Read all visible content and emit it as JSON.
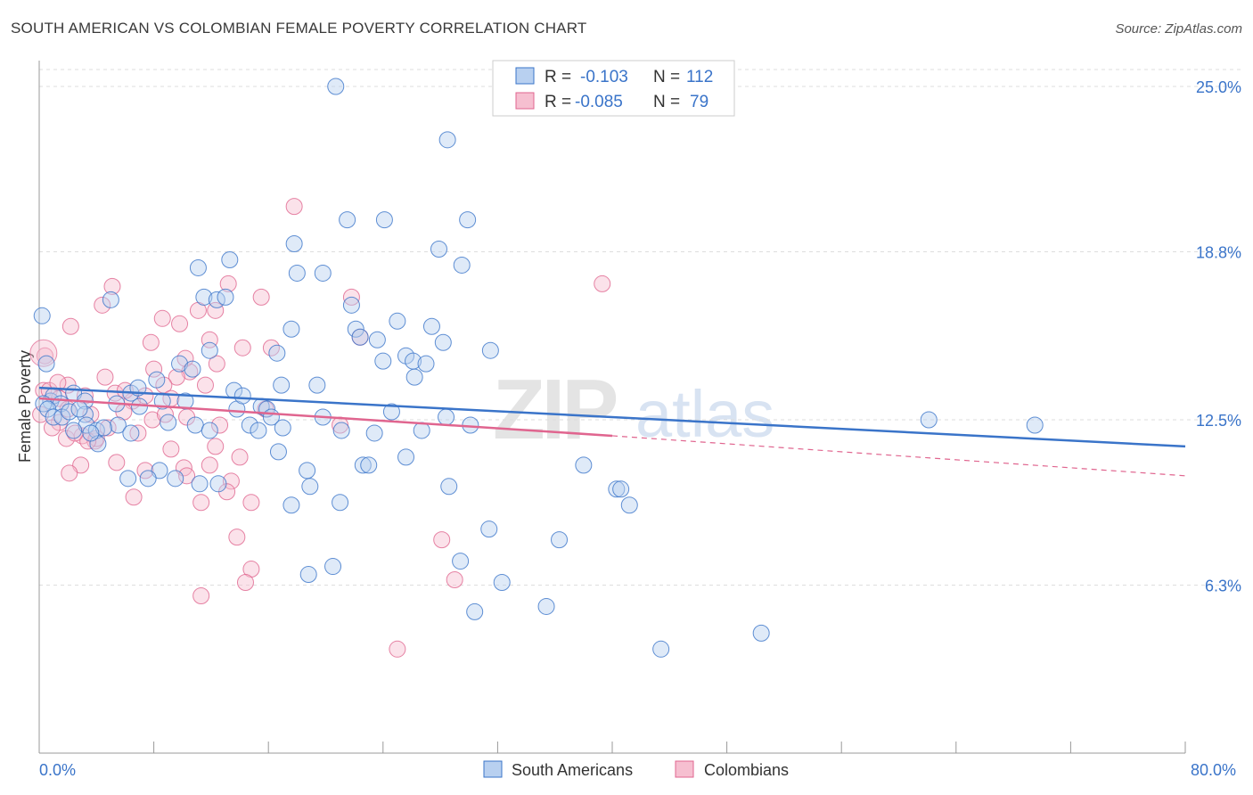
{
  "title": "SOUTH AMERICAN VS COLOMBIAN FEMALE POVERTY CORRELATION CHART",
  "source": "Source: ZipAtlas.com",
  "watermark": {
    "part1": "ZIP",
    "part2": "atlas"
  },
  "colors": {
    "blue": "#3a74c9",
    "blue_fill": "#b8d0f0",
    "pink": "#e0658f",
    "pink_fill": "#f6bfd0",
    "grid": "#dddddd",
    "axis": "#999999"
  },
  "legend": {
    "rows": [
      {
        "r_label": "R =",
        "r_value": "-0.103",
        "n_label": "N =",
        "n_value": "112",
        "color": "blue"
      },
      {
        "r_label": "R =",
        "r_value": "-0.085",
        "n_label": "N =",
        "n_value": "79",
        "color": "pink"
      }
    ]
  },
  "bottom_legend": [
    "South Americans",
    "Colombians"
  ],
  "chart_data": {
    "type": "scatter",
    "title": "SOUTH AMERICAN VS COLOMBIAN FEMALE POVERTY CORRELATION CHART",
    "xlabel": "",
    "ylabel": "Female Poverty",
    "xlim": [
      0,
      80
    ],
    "ylim": [
      0,
      26
    ],
    "x_tick_labels": [
      "0.0%",
      "80.0%"
    ],
    "y_ticks": [
      6.3,
      12.5,
      18.8,
      25.0
    ],
    "y_tick_labels": [
      "6.3%",
      "12.5%",
      "18.8%",
      "25.0%"
    ],
    "grid": "horizontal dashed",
    "series": [
      {
        "name": "South Americans",
        "color": "#3a74c9",
        "r": -0.103,
        "n": 112,
        "trend": {
          "x": [
            0,
            80
          ],
          "y": [
            13.7,
            11.5
          ]
        },
        "points": [
          [
            20.7,
            25.0
          ],
          [
            28.5,
            23.0
          ],
          [
            21.5,
            20.0
          ],
          [
            24.1,
            20.0
          ],
          [
            29.9,
            20.0
          ],
          [
            17.8,
            19.1
          ],
          [
            27.9,
            18.9
          ],
          [
            13.3,
            18.5
          ],
          [
            29.5,
            18.3
          ],
          [
            11.1,
            18.2
          ],
          [
            18.0,
            18.0
          ],
          [
            19.8,
            18.0
          ],
          [
            5.0,
            17.0
          ],
          [
            11.5,
            17.1
          ],
          [
            12.4,
            17.0
          ],
          [
            13.0,
            17.1
          ],
          [
            21.8,
            16.8
          ],
          [
            25.0,
            16.2
          ],
          [
            22.1,
            15.9
          ],
          [
            27.4,
            16.0
          ],
          [
            17.6,
            15.9
          ],
          [
            22.4,
            15.6
          ],
          [
            23.6,
            15.5
          ],
          [
            28.2,
            15.4
          ],
          [
            31.5,
            15.1
          ],
          [
            11.9,
            15.1
          ],
          [
            16.6,
            15.0
          ],
          [
            25.6,
            14.9
          ],
          [
            26.1,
            14.7
          ],
          [
            27.0,
            14.6
          ],
          [
            24.0,
            14.7
          ],
          [
            9.8,
            14.6
          ],
          [
            10.7,
            14.4
          ],
          [
            26.2,
            14.1
          ],
          [
            8.2,
            14.0
          ],
          [
            16.9,
            13.8
          ],
          [
            19.4,
            13.8
          ],
          [
            13.6,
            13.6
          ],
          [
            0.2,
            16.4
          ],
          [
            0.5,
            14.6
          ],
          [
            0.8,
            13.2
          ],
          [
            1.0,
            13.4
          ],
          [
            1.5,
            13.1
          ],
          [
            2.4,
            13.5
          ],
          [
            3.2,
            13.2
          ],
          [
            0.3,
            13.1
          ],
          [
            0.6,
            12.9
          ],
          [
            1.0,
            12.6
          ],
          [
            1.6,
            12.6
          ],
          [
            2.1,
            12.8
          ],
          [
            3.2,
            12.7
          ],
          [
            5.4,
            13.1
          ],
          [
            6.4,
            13.5
          ],
          [
            6.9,
            13.7
          ],
          [
            8.6,
            13.2
          ],
          [
            10.2,
            13.2
          ],
          [
            13.8,
            12.9
          ],
          [
            15.5,
            13.0
          ],
          [
            15.9,
            12.9
          ],
          [
            16.2,
            12.6
          ],
          [
            19.8,
            12.6
          ],
          [
            28.4,
            12.6
          ],
          [
            3.3,
            12.3
          ],
          [
            5.5,
            12.3
          ],
          [
            4.0,
            12.1
          ],
          [
            2.4,
            12.1
          ],
          [
            4.5,
            12.2
          ],
          [
            6.4,
            12.0
          ],
          [
            10.9,
            12.3
          ],
          [
            11.9,
            12.1
          ],
          [
            14.7,
            12.3
          ],
          [
            15.3,
            12.1
          ],
          [
            21.1,
            12.1
          ],
          [
            23.4,
            12.0
          ],
          [
            26.7,
            12.1
          ],
          [
            62.1,
            12.5
          ],
          [
            69.5,
            12.3
          ],
          [
            4.1,
            11.6
          ],
          [
            8.4,
            10.6
          ],
          [
            16.7,
            11.3
          ],
          [
            22.6,
            10.8
          ],
          [
            23.0,
            10.8
          ],
          [
            25.6,
            11.1
          ],
          [
            38.0,
            10.8
          ],
          [
            6.2,
            10.3
          ],
          [
            7.6,
            10.3
          ],
          [
            9.5,
            10.3
          ],
          [
            12.5,
            10.1
          ],
          [
            18.7,
            10.6
          ],
          [
            18.9,
            10.0
          ],
          [
            28.6,
            10.0
          ],
          [
            40.3,
            9.9
          ],
          [
            40.6,
            9.9
          ],
          [
            41.2,
            9.3
          ],
          [
            17.6,
            9.3
          ],
          [
            21.0,
            9.4
          ],
          [
            31.4,
            8.4
          ],
          [
            36.3,
            8.0
          ],
          [
            29.4,
            7.2
          ],
          [
            20.5,
            7.0
          ],
          [
            18.8,
            6.7
          ],
          [
            32.3,
            6.4
          ],
          [
            35.4,
            5.5
          ],
          [
            30.4,
            5.3
          ],
          [
            43.4,
            3.9
          ],
          [
            50.4,
            4.5
          ],
          [
            11.2,
            10.1
          ],
          [
            2.8,
            12.9
          ],
          [
            3.6,
            12.0
          ],
          [
            7.0,
            13.0
          ],
          [
            9.0,
            12.4
          ],
          [
            14.2,
            13.4
          ],
          [
            24.6,
            12.8
          ],
          [
            30.1,
            12.3
          ],
          [
            17.0,
            12.2
          ]
        ]
      },
      {
        "name": "Colombians",
        "color": "#e0658f",
        "r": -0.085,
        "n": 79,
        "trend": {
          "x": [
            0,
            40
          ],
          "y": [
            13.3,
            11.9
          ]
        },
        "trend_extension": {
          "x": [
            40,
            80
          ],
          "y": [
            11.9,
            10.4
          ]
        },
        "points": [
          [
            17.8,
            20.5
          ],
          [
            39.3,
            17.6
          ],
          [
            5.1,
            17.5
          ],
          [
            13.2,
            17.6
          ],
          [
            4.4,
            16.8
          ],
          [
            15.5,
            17.1
          ],
          [
            21.8,
            17.1
          ],
          [
            2.2,
            16.0
          ],
          [
            8.6,
            16.3
          ],
          [
            9.8,
            16.1
          ],
          [
            11.1,
            16.6
          ],
          [
            12.3,
            16.6
          ],
          [
            22.4,
            15.6
          ],
          [
            7.8,
            15.4
          ],
          [
            11.9,
            15.5
          ],
          [
            14.2,
            15.2
          ],
          [
            16.2,
            15.2
          ],
          [
            0.4,
            14.9
          ],
          [
            8.0,
            14.4
          ],
          [
            10.5,
            14.3
          ],
          [
            10.2,
            14.8
          ],
          [
            12.4,
            14.6
          ],
          [
            9.6,
            14.1
          ],
          [
            4.6,
            14.1
          ],
          [
            8.7,
            13.8
          ],
          [
            11.6,
            13.8
          ],
          [
            0.3,
            13.6
          ],
          [
            0.7,
            13.6
          ],
          [
            1.4,
            13.3
          ],
          [
            2.0,
            13.8
          ],
          [
            3.2,
            13.4
          ],
          [
            5.3,
            13.5
          ],
          [
            6.5,
            13.2
          ],
          [
            7.4,
            13.4
          ],
          [
            9.2,
            13.3
          ],
          [
            2.0,
            12.9
          ],
          [
            3.6,
            12.7
          ],
          [
            5.9,
            12.8
          ],
          [
            7.9,
            12.5
          ],
          [
            8.8,
            12.7
          ],
          [
            10.3,
            12.6
          ],
          [
            12.6,
            12.3
          ],
          [
            1.4,
            12.4
          ],
          [
            4.8,
            12.2
          ],
          [
            6.9,
            12.0
          ],
          [
            3.0,
            11.9
          ],
          [
            3.9,
            11.7
          ],
          [
            4.0,
            11.8
          ],
          [
            1.9,
            11.8
          ],
          [
            3.4,
            11.7
          ],
          [
            9.2,
            11.4
          ],
          [
            12.3,
            11.5
          ],
          [
            14.0,
            11.1
          ],
          [
            2.9,
            10.8
          ],
          [
            7.4,
            10.6
          ],
          [
            10.1,
            10.7
          ],
          [
            10.3,
            10.4
          ],
          [
            11.9,
            10.8
          ],
          [
            13.4,
            10.2
          ],
          [
            5.4,
            10.9
          ],
          [
            2.1,
            10.5
          ],
          [
            6.6,
            9.6
          ],
          [
            13.1,
            9.8
          ],
          [
            11.3,
            9.4
          ],
          [
            14.8,
            9.4
          ],
          [
            13.8,
            8.1
          ],
          [
            28.1,
            8.0
          ],
          [
            14.8,
            6.9
          ],
          [
            14.4,
            6.4
          ],
          [
            11.3,
            5.9
          ],
          [
            29.0,
            6.5
          ],
          [
            25.0,
            3.9
          ],
          [
            0.1,
            12.7
          ],
          [
            0.9,
            12.2
          ],
          [
            1.3,
            13.9
          ],
          [
            2.5,
            12.0
          ],
          [
            6.0,
            13.6
          ],
          [
            15.8,
            12.9
          ],
          [
            21.0,
            12.3
          ]
        ]
      }
    ]
  }
}
